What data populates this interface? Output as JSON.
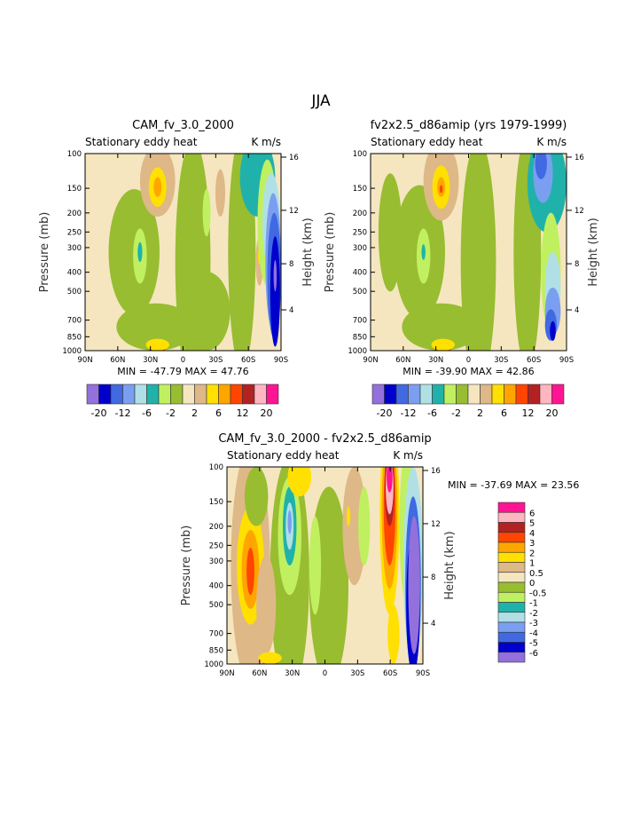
{
  "figure_title": "JJA",
  "palette": [
    "#9370db",
    "#0000cd",
    "#4169e1",
    "#7b9ff0",
    "#b0e0e6",
    "#20b2aa",
    "#c0f060",
    "#98bd30",
    "#f5e6c0",
    "#deb887",
    "#ffe000",
    "#ffa500",
    "#ff4500",
    "#b22222",
    "#ffb6c1",
    "#ff1493"
  ],
  "chart_data": [
    {
      "type": "heatmap",
      "title": "CAM_fv_3.0_2000",
      "left_subtitle": "Stationary eddy heat",
      "right_subtitle": "K m/s",
      "ylabel": "Pressure (mb)",
      "y2label": "Height (km)",
      "x_ticks": [
        "90N",
        "60N",
        "30N",
        "0",
        "30S",
        "60S",
        "90S"
      ],
      "y_ticks": [
        "100",
        "150",
        "200",
        "250",
        "300",
        "400",
        "500",
        "700",
        "850",
        "1000"
      ],
      "y2_ticks": [
        "16",
        "12",
        "8",
        "4"
      ],
      "y_scale": "log",
      "ylim": [
        1000,
        100
      ],
      "min_max_text": "MIN = -47.79   MAX =  47.76",
      "min": -47.79,
      "max": 47.76,
      "colorbar_labels": [
        "-20",
        "-12",
        "-6",
        "-2",
        "2",
        "6",
        "12",
        "20"
      ],
      "colorbar_orientation": "horizontal"
    },
    {
      "type": "heatmap",
      "title": "fv2x2.5_d86amip (yrs 1979-1999)",
      "left_subtitle": "Stationary eddy heat",
      "right_subtitle": "K m/s",
      "ylabel": "Pressure (mb)",
      "y2label": "Height (km)",
      "x_ticks": [
        "90N",
        "60N",
        "30N",
        "0",
        "30S",
        "60S",
        "90S"
      ],
      "y_ticks": [
        "100",
        "150",
        "200",
        "250",
        "300",
        "400",
        "500",
        "700",
        "850",
        "1000"
      ],
      "y2_ticks": [
        "16",
        "12",
        "8",
        "4"
      ],
      "y_scale": "log",
      "ylim": [
        1000,
        100
      ],
      "min_max_text": "MIN = -39.90   MAX =  42.86",
      "min": -39.9,
      "max": 42.86,
      "colorbar_labels": [
        "-20",
        "-12",
        "-6",
        "-2",
        "2",
        "6",
        "12",
        "20"
      ],
      "colorbar_orientation": "horizontal"
    },
    {
      "type": "heatmap",
      "title": "CAM_fv_3.0_2000 - fv2x2.5_d86amip",
      "left_subtitle": "Stationary eddy heat",
      "right_subtitle": "K m/s",
      "ylabel": "Pressure (mb)",
      "y2label": "Height (km)",
      "x_ticks": [
        "90N",
        "60N",
        "30N",
        "0",
        "30S",
        "60S",
        "90S"
      ],
      "y_ticks": [
        "100",
        "150",
        "200",
        "250",
        "300",
        "400",
        "500",
        "700",
        "850",
        "1000"
      ],
      "y2_ticks": [
        "16",
        "12",
        "8",
        "4"
      ],
      "y_scale": "log",
      "ylim": [
        1000,
        100
      ],
      "min_max_text": "MIN = -37.69   MAX =  23.56",
      "min": -37.69,
      "max": 23.56,
      "colorbar_labels": [
        "6",
        "5",
        "4",
        "3",
        "2",
        "1",
        "0.5",
        "0",
        "-0.5",
        "-1",
        "-2",
        "-3",
        "-4",
        "-5",
        "-6"
      ],
      "colorbar_orientation": "vertical"
    }
  ]
}
